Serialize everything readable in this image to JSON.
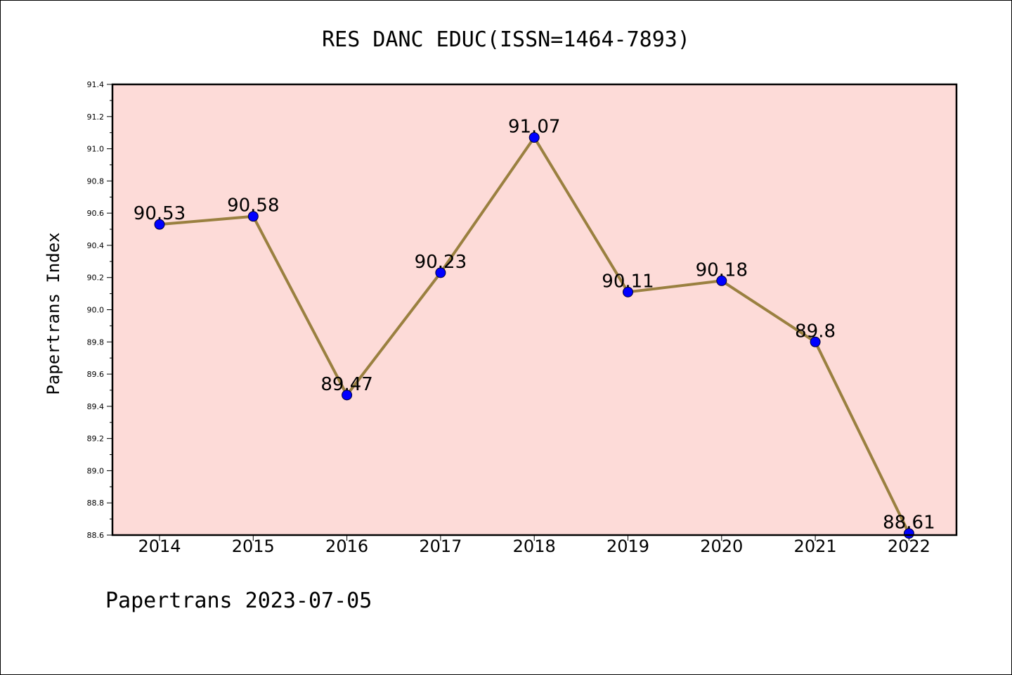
{
  "colors": {
    "plot_background": "#fddbd8",
    "line": "#9a8040",
    "marker": "#0000ff"
  },
  "chart_data": {
    "type": "line",
    "title": "RES DANC EDUC(ISSN=1464-7893)",
    "xlabel": "",
    "ylabel": "Papertrans Index",
    "x": [
      "2014",
      "2015",
      "2016",
      "2017",
      "2018",
      "2019",
      "2020",
      "2021",
      "2022"
    ],
    "series": [
      {
        "values": [
          90.53,
          90.58,
          89.47,
          90.23,
          91.07,
          90.11,
          90.18,
          89.8,
          88.61
        ],
        "labels": [
          "90.53",
          "90.58",
          "89.47",
          "90.23",
          "91.07",
          "90.11",
          "90.18",
          "89.8",
          "88.61"
        ]
      }
    ],
    "ylim": [
      88.6,
      91.4
    ],
    "yticks": [
      "88.6",
      "88.8",
      "89.0",
      "89.2",
      "89.4",
      "89.6",
      "89.8",
      "90.0",
      "90.2",
      "90.4",
      "90.6",
      "90.8",
      "91.0",
      "91.2",
      "91.4"
    ],
    "grid": false,
    "legend": "none"
  },
  "footer": "Papertrans 2023-07-05"
}
